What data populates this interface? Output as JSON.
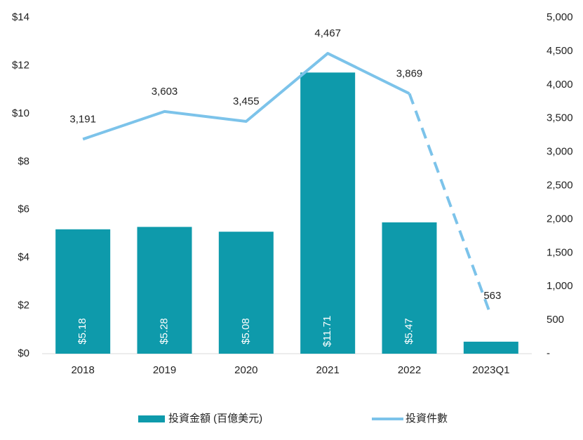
{
  "chart_data": {
    "type": "bar_line",
    "categories": [
      "2018",
      "2019",
      "2020",
      "2021",
      "2022",
      "2023Q1"
    ],
    "series": [
      {
        "name": "投資金額 (百億美元)",
        "color": "#0e9aab",
        "values": [
          5.18,
          5.28,
          5.08,
          11.71,
          5.47,
          0.5
        ],
        "value_labels": [
          "$5.18",
          "$5.28",
          "$5.08",
          "$11.71",
          "$5.47",
          "$"
        ]
      },
      {
        "name": "投資件數",
        "color": "#7cc3ea",
        "axis": "y2",
        "values": [
          3191,
          3603,
          3455,
          4467,
          3869,
          563
        ],
        "value_labels": [
          "3,191",
          "3,603",
          "3,455",
          "4,467",
          "3,869",
          "563"
        ]
      }
    ],
    "ylim": [
      0,
      14
    ],
    "yticks": [
      {
        "value": 0,
        "label": "$0"
      },
      {
        "value": 2,
        "label": "$2"
      },
      {
        "value": 4,
        "label": "$4"
      },
      {
        "value": 6,
        "label": "$6"
      },
      {
        "value": 8,
        "label": "$8"
      },
      {
        "value": 10,
        "label": "$10"
      },
      {
        "value": 12,
        "label": "$12"
      },
      {
        "value": 14,
        "label": "$14"
      }
    ],
    "y2lim": [
      0,
      5000
    ],
    "y2ticks": [
      {
        "value": 0,
        "label": "-"
      },
      500,
      {
        "value": 1000,
        "label": "1,000"
      },
      {
        "value": 1500,
        "label": "1,500"
      },
      {
        "value": 2000,
        "label": "2,000"
      },
      {
        "value": 2500,
        "label": "2,500"
      },
      {
        "value": 3000,
        "label": "3,000"
      },
      {
        "value": 3500,
        "label": "3,500"
      },
      {
        "value": 4000,
        "label": "4,000"
      },
      {
        "value": 4500,
        "label": "4,500"
      },
      {
        "value": 5000,
        "label": "5,000"
      }
    ],
    "grid": false,
    "legend": "bottom"
  }
}
